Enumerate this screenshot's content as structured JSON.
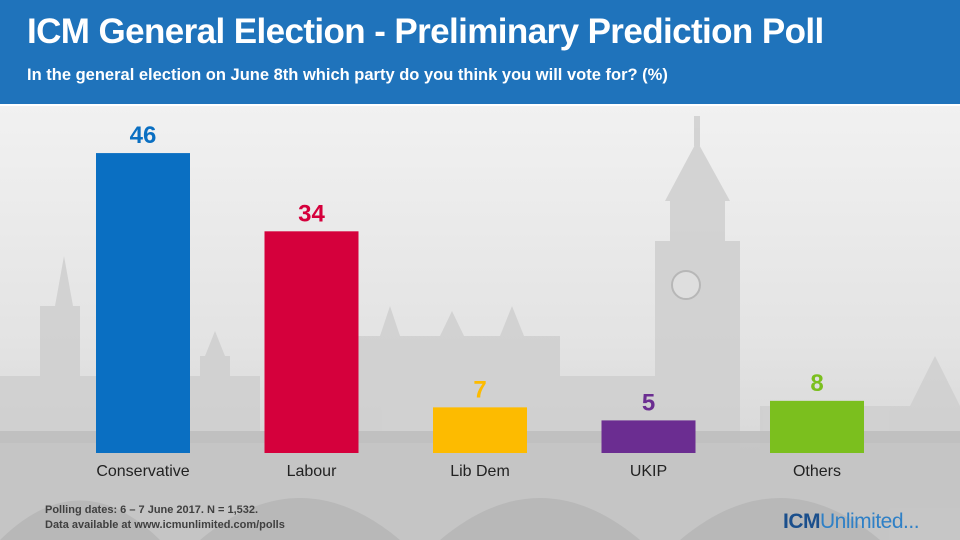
{
  "header": {
    "title": "ICM General Election - Preliminary Prediction Poll",
    "subtitle": "In the general election on June 8th which party do you think you will vote for? (%)"
  },
  "chart_data": {
    "type": "bar",
    "title": "ICM General Election - Preliminary Prediction Poll",
    "ylabel": "%",
    "ylim": [
      0,
      50
    ],
    "grid": false,
    "categories": [
      "Conservative",
      "Labour",
      "Lib Dem",
      "UKIP",
      "Others"
    ],
    "values": [
      46,
      34,
      7,
      5,
      8
    ],
    "colors": [
      "#0a6fc2",
      "#d5003c",
      "#fdbb00",
      "#6b2d91",
      "#7bbf1e"
    ]
  },
  "footer": {
    "polling_dates": "Polling  dates: 6 – 7 June 2017. N = 1,532.",
    "data_source": "Data available at www.icmunlimited.com/polls"
  },
  "logo": {
    "part1": "ICM",
    "part2": "Unlimited..."
  }
}
